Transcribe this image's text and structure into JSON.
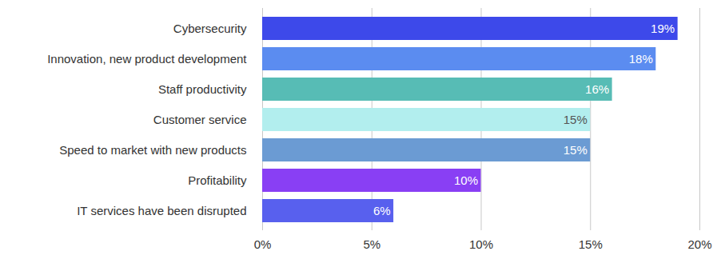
{
  "chart_data": {
    "type": "bar",
    "orientation": "horizontal",
    "categories": [
      "Cybersecurity",
      "Innovation, new product development",
      "Staff productivity",
      "Customer service",
      "Speed to market with new products",
      "Profitability",
      "IT services have been disrupted"
    ],
    "values": [
      19,
      18,
      16,
      15,
      15,
      10,
      6
    ],
    "value_labels": [
      "19%",
      "18%",
      "16%",
      "15%",
      "15%",
      "10%",
      "6%"
    ],
    "colors": [
      "#3d49ea",
      "#5b8cf0",
      "#57bcb5",
      "#b2eeee",
      "#6b9bd3",
      "#893ff4",
      "#5860ee"
    ],
    "xlim": [
      0,
      20
    ],
    "xticks": [
      {
        "value": 0,
        "label": "0%"
      },
      {
        "value": 5,
        "label": "5%"
      },
      {
        "value": 10,
        "label": "10%"
      },
      {
        "value": 15,
        "label": "15%"
      },
      {
        "value": 20,
        "label": "20%"
      }
    ],
    "grid": true,
    "data_labels": true
  }
}
